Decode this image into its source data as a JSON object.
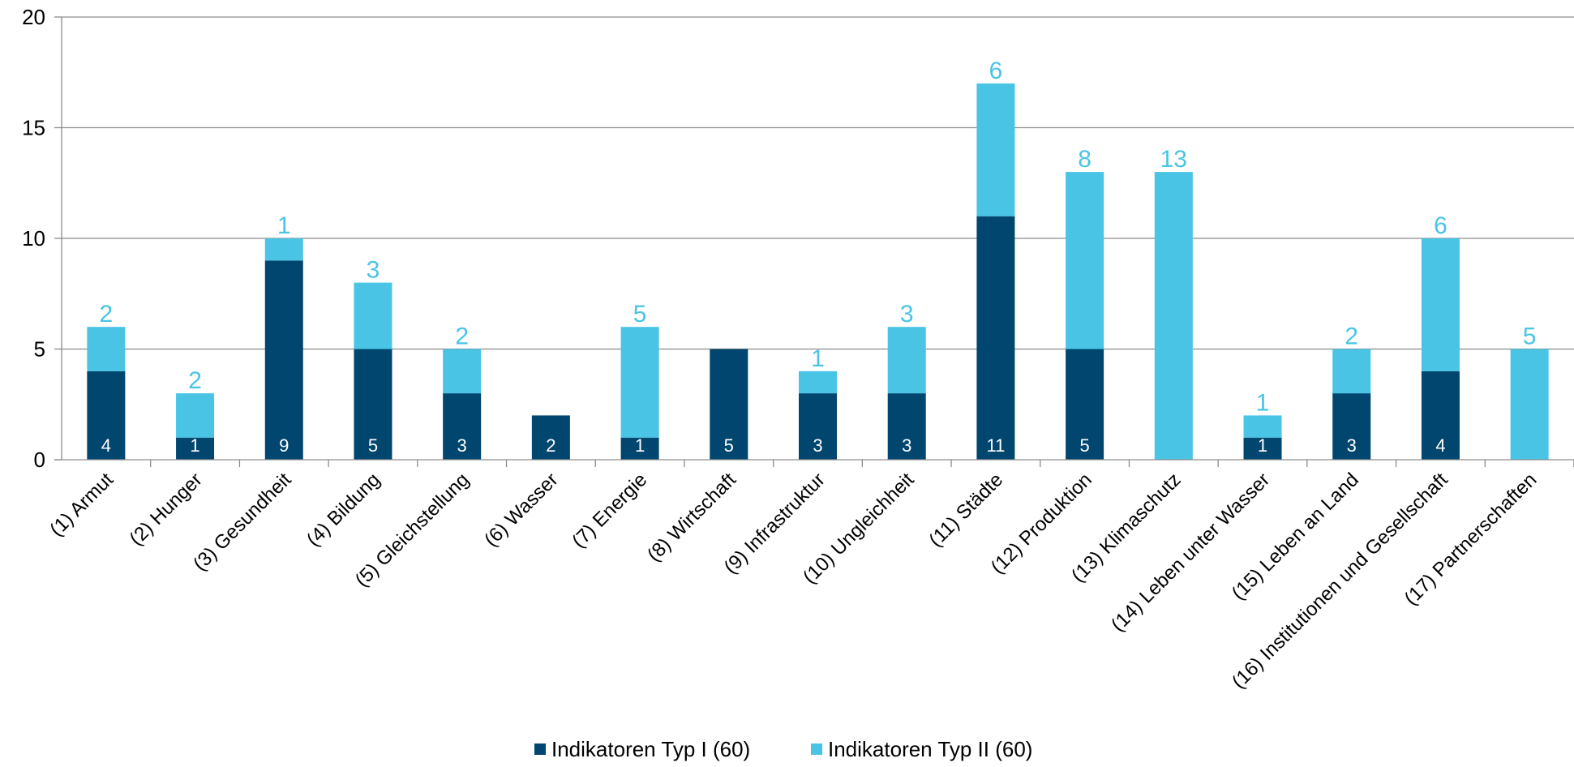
{
  "chart_data": {
    "type": "bar",
    "stacked": true,
    "categories": [
      "(1) Armut",
      "(2) Hunger",
      "(3) Gesundheit",
      "(4) Bildung",
      "(5) Gleichstellung",
      "(6) Wasser",
      "(7) Energie",
      "(8) Wirtschaft",
      "(9) Infrastruktur",
      "(10) Ungleichheit",
      "(11) Städte",
      "(12) Produktion",
      "(13) Klimaschutz",
      "(14) Leben unter Wasser",
      "(15) Leben an Land",
      "(16) Institutionen und Gesellschaft",
      "(17) Partnerschaften"
    ],
    "series": [
      {
        "name": "Indikatoren Typ I (60)",
        "color": "#00466e",
        "values": [
          4,
          1,
          9,
          5,
          3,
          2,
          1,
          5,
          3,
          3,
          11,
          5,
          0,
          1,
          3,
          4,
          0
        ]
      },
      {
        "name": "Indikatoren Typ II (60)",
        "color": "#49c4e5",
        "values": [
          2,
          2,
          1,
          3,
          2,
          0,
          5,
          0,
          1,
          3,
          6,
          8,
          13,
          1,
          2,
          6,
          5
        ]
      }
    ],
    "ylim": [
      0,
      20
    ],
    "yticks": [
      0,
      5,
      10,
      15,
      20
    ],
    "grid": true,
    "legend_position": "bottom"
  }
}
